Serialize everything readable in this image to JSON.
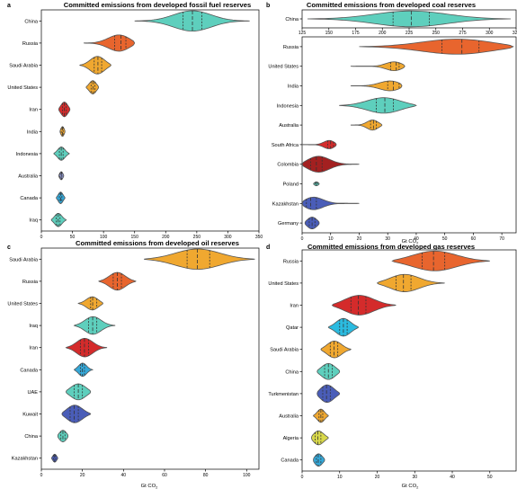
{
  "chart_data": [
    {
      "type": "violin",
      "panel_label": "a",
      "title": "Committed emissions from developed fossil fuel reserves",
      "xlabel": "Gt CO",
      "xlabel_sub": "2",
      "xlim": [
        0,
        350
      ],
      "xticks": [
        0,
        50,
        100,
        150,
        200,
        250,
        300,
        350
      ],
      "tick_position": "bottom",
      "categories": [
        "China",
        "Russia",
        "Saudi Arabia",
        "United States",
        "Iran",
        "India",
        "Indonesia",
        "Australia",
        "Canada",
        "Iraq"
      ],
      "colors": [
        "#5ecfbd",
        "#e8652e",
        "#f0a830",
        "#f0a830",
        "#d42b2b",
        "#f0a830",
        "#5ecfbd",
        "#8a92c8",
        "#35a8d8",
        "#5ecfbd"
      ],
      "violins": [
        {
          "min": 150,
          "max": 335,
          "q1": 228,
          "median": 243,
          "q3": 258,
          "halfwidth": 0.46
        },
        {
          "min": 68,
          "max": 150,
          "q1": 118,
          "median": 128,
          "q3": 136,
          "halfwidth": 0.4
        },
        {
          "min": 62,
          "max": 112,
          "q1": 85,
          "median": 91,
          "q3": 97,
          "halfwidth": 0.4
        },
        {
          "min": 72,
          "max": 92,
          "q1": 80,
          "median": 83,
          "q3": 86,
          "halfwidth": 0.3
        },
        {
          "min": 28,
          "max": 46,
          "q1": 34,
          "median": 37,
          "q3": 40,
          "halfwidth": 0.33
        },
        {
          "min": 30,
          "max": 38,
          "q1": 32,
          "median": 34,
          "q3": 35,
          "halfwidth": 0.22
        },
        {
          "min": 20,
          "max": 45,
          "q1": 29,
          "median": 32,
          "q3": 35,
          "halfwidth": 0.3
        },
        {
          "min": 28,
          "max": 36,
          "q1": 30,
          "median": 32,
          "q3": 33,
          "halfwidth": 0.18
        },
        {
          "min": 24,
          "max": 38,
          "q1": 29,
          "median": 31,
          "q3": 33,
          "halfwidth": 0.26
        },
        {
          "min": 16,
          "max": 40,
          "q1": 24,
          "median": 27,
          "q3": 30,
          "halfwidth": 0.3
        }
      ]
    },
    {
      "type": "violin",
      "panel_label": "b",
      "title": "Committed emissions from developed coal reserves",
      "xlabel": "Gt CO",
      "xlabel_sub": "2",
      "sub_panel": {
        "category": "China",
        "color": "#5ecfbd",
        "xlim": [
          125,
          325
        ],
        "xticks": [
          125,
          150,
          175,
          200,
          225,
          250,
          275,
          300,
          325
        ],
        "violin": {
          "min": 130,
          "max": 320,
          "q1": 210,
          "median": 227,
          "q3": 244,
          "halfwidth": 0.44
        }
      },
      "xlim": [
        0,
        75
      ],
      "xticks": [
        0,
        10,
        20,
        30,
        40,
        50,
        60,
        70
      ],
      "tick_position": "bottom",
      "categories": [
        "Russia",
        "United States",
        "India",
        "Indonesia",
        "Australia",
        "South Africa",
        "Colombia",
        "Poland",
        "Kazakhstan",
        "Germany"
      ],
      "colors": [
        "#e8652e",
        "#f0a830",
        "#f0a830",
        "#5ecfbd",
        "#f0a830",
        "#d42b2b",
        "#a32020",
        "#5ecfbd",
        "#4a5db8",
        "#4a5db8"
      ],
      "violins": [
        {
          "min": 20,
          "max": 74,
          "q1": 49,
          "median": 56,
          "q3": 62,
          "halfwidth": 0.4
        },
        {
          "min": 17,
          "max": 36,
          "q1": 31,
          "median": 33,
          "q3": 34,
          "halfwidth": 0.28
        },
        {
          "min": 17,
          "max": 35,
          "q1": 30,
          "median": 32,
          "q3": 34,
          "halfwidth": 0.3
        },
        {
          "min": 13,
          "max": 40,
          "q1": 26,
          "median": 29,
          "q3": 32,
          "halfwidth": 0.4
        },
        {
          "min": 17,
          "max": 28,
          "q1": 24,
          "median": 25,
          "q3": 26,
          "halfwidth": 0.28
        },
        {
          "min": 0,
          "max": 12,
          "q1": 9,
          "median": 10,
          "q3": 11,
          "halfwidth": 0.26
        },
        {
          "min": 0,
          "max": 20,
          "q1": 3,
          "median": 5,
          "q3": 7,
          "halfwidth": 0.45
        },
        {
          "min": 4,
          "max": 6,
          "q1": 4.6,
          "median": 5,
          "q3": 5.4,
          "halfwidth": 0.1
        },
        {
          "min": 0,
          "max": 20,
          "q1": 1.5,
          "median": 3,
          "q3": 5,
          "halfwidth": 0.4
        },
        {
          "min": 1,
          "max": 6,
          "q1": 2.5,
          "median": 3.5,
          "q3": 4.5,
          "halfwidth": 0.3
        }
      ]
    },
    {
      "type": "violin",
      "panel_label": "c",
      "title": "Committed emissions from developed oil reserves",
      "xlabel": "Gt CO",
      "xlabel_sub": "2",
      "xlim": [
        0,
        106
      ],
      "xticks": [
        0,
        20,
        40,
        60,
        80,
        100
      ],
      "tick_position": "bottom",
      "categories": [
        "Saudi Arabia",
        "Russia",
        "United States",
        "Iraq",
        "Iran",
        "Canada",
        "UAE",
        "Kuwait",
        "China",
        "Kazakhstan"
      ],
      "colors": [
        "#f0a830",
        "#e8652e",
        "#f0a830",
        "#5ecfbd",
        "#d42b2b",
        "#35a8d8",
        "#5ecfbd",
        "#4a5db8",
        "#5ecfbd",
        "#4a5db8"
      ],
      "violins": [
        {
          "min": 50,
          "max": 104,
          "q1": 71,
          "median": 76,
          "q3": 82,
          "halfwidth": 0.46
        },
        {
          "min": 28,
          "max": 46,
          "q1": 35,
          "median": 37,
          "q3": 39,
          "halfwidth": 0.4
        },
        {
          "min": 18,
          "max": 30,
          "q1": 24,
          "median": 25,
          "q3": 27,
          "halfwidth": 0.3
        },
        {
          "min": 16,
          "max": 36,
          "q1": 23,
          "median": 25,
          "q3": 27,
          "halfwidth": 0.4
        },
        {
          "min": 12,
          "max": 32,
          "q1": 19,
          "median": 21,
          "q3": 23,
          "halfwidth": 0.42
        },
        {
          "min": 16,
          "max": 25,
          "q1": 19,
          "median": 20,
          "q3": 21,
          "halfwidth": 0.3
        },
        {
          "min": 12,
          "max": 24,
          "q1": 16,
          "median": 18,
          "q3": 20,
          "halfwidth": 0.36
        },
        {
          "min": 10,
          "max": 24,
          "q1": 14,
          "median": 16,
          "q3": 18,
          "halfwidth": 0.4
        },
        {
          "min": 8,
          "max": 13,
          "q1": 9.5,
          "median": 10.5,
          "q3": 11.5,
          "halfwidth": 0.26
        },
        {
          "min": 5,
          "max": 8,
          "q1": 6,
          "median": 6.5,
          "q3": 7,
          "halfwidth": 0.18
        }
      ]
    },
    {
      "type": "violin",
      "panel_label": "d",
      "title": "Committed emissions from developed gas reserves",
      "xlabel": "Gt CO",
      "xlabel_sub": "2",
      "xlim": [
        0,
        57
      ],
      "xticks": [
        0,
        10,
        20,
        30,
        40,
        50
      ],
      "tick_position": "bottom",
      "categories": [
        "Russia",
        "United States",
        "Iran",
        "Qatar",
        "Saudi Arabia",
        "China",
        "Turkmenistan",
        "Australia",
        "Algeria",
        "Canada"
      ],
      "colors": [
        "#e8652e",
        "#f0a830",
        "#d42b2b",
        "#2bbbe0",
        "#f0a830",
        "#5ecfbd",
        "#4a5db8",
        "#f0a830",
        "#d8d84a",
        "#35a8d8"
      ],
      "violins": [
        {
          "min": 24,
          "max": 50,
          "q1": 32,
          "median": 35,
          "q3": 38,
          "halfwidth": 0.45
        },
        {
          "min": 20,
          "max": 38,
          "q1": 25,
          "median": 27,
          "q3": 29,
          "halfwidth": 0.4
        },
        {
          "min": 8,
          "max": 25,
          "q1": 13,
          "median": 15,
          "q3": 17,
          "halfwidth": 0.45
        },
        {
          "min": 7,
          "max": 15,
          "q1": 10,
          "median": 11,
          "q3": 12,
          "halfwidth": 0.4
        },
        {
          "min": 5,
          "max": 13,
          "q1": 7.5,
          "median": 8.5,
          "q3": 9.5,
          "halfwidth": 0.38
        },
        {
          "min": 4,
          "max": 10,
          "q1": 6,
          "median": 7,
          "q3": 8,
          "halfwidth": 0.36
        },
        {
          "min": 4,
          "max": 10,
          "q1": 5.5,
          "median": 6.5,
          "q3": 7.5,
          "halfwidth": 0.4
        },
        {
          "min": 3,
          "max": 7,
          "q1": 4.5,
          "median": 5,
          "q3": 5.5,
          "halfwidth": 0.3
        },
        {
          "min": 2.5,
          "max": 7,
          "q1": 3.5,
          "median": 4.2,
          "q3": 5,
          "halfwidth": 0.32
        },
        {
          "min": 3,
          "max": 6,
          "q1": 3.8,
          "median": 4.3,
          "q3": 5,
          "halfwidth": 0.28
        }
      ]
    }
  ]
}
